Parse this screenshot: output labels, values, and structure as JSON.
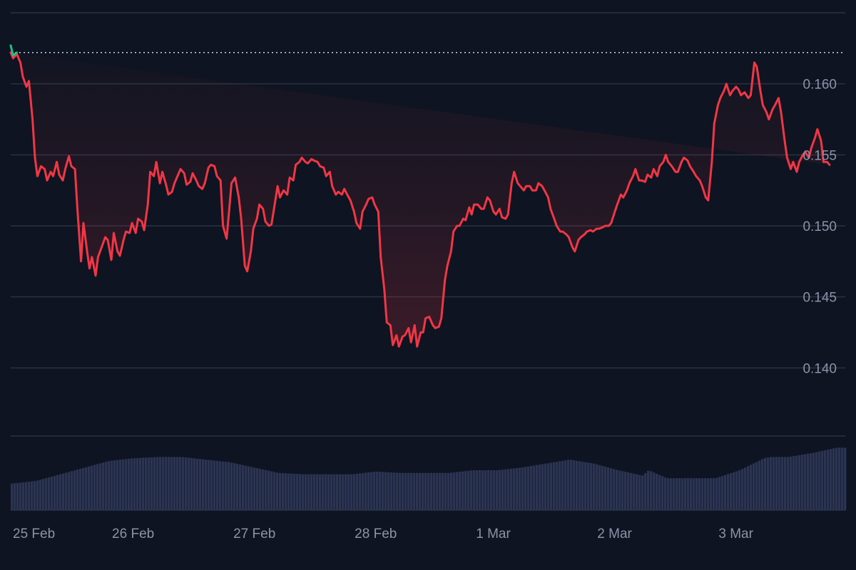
{
  "chart_data": {
    "type": "line",
    "title": "",
    "xlabel": "",
    "ylabel": "",
    "colors": {
      "background": "#0e1421",
      "line_down": "#f23645",
      "line_up": "#22c08a",
      "grid": "#2a3142",
      "volume": "#2b3452",
      "reference_line": "#cfd3dc",
      "tick_text": "#8b93a6"
    },
    "x_ticks": [
      {
        "label": "25 Feb",
        "t": 0.0
      },
      {
        "label": "26 Feb",
        "t": 1.0
      },
      {
        "label": "27 Feb",
        "t": 2.0
      },
      {
        "label": "28 Feb",
        "t": 3.0
      },
      {
        "label": "1 Mar",
        "t": 4.0
      },
      {
        "label": "2 Mar",
        "t": 5.0
      },
      {
        "label": "3 Mar",
        "t": 6.0
      }
    ],
    "xlim": [
      0.0,
      6.88
    ],
    "y_ticks": [
      0.14,
      0.145,
      0.15,
      0.155,
      0.16
    ],
    "y_tick_labels": [
      "0.140",
      "0.145",
      "0.150",
      "0.155",
      "0.160"
    ],
    "ylim": [
      0.1352,
      0.165
    ],
    "reference_value": 0.1622,
    "opening_segment": {
      "t": [
        0.0,
        0.02,
        0.05
      ],
      "v": [
        0.1627,
        0.162,
        0.1622
      ]
    },
    "series": [
      {
        "role": "price",
        "t": [
          0.0,
          0.02,
          0.05,
          0.08,
          0.1,
          0.13,
          0.15,
          0.18,
          0.2,
          0.22,
          0.25,
          0.28,
          0.3,
          0.33,
          0.35,
          0.38,
          0.4,
          0.43,
          0.45,
          0.48,
          0.5,
          0.53,
          0.55,
          0.58,
          0.6,
          0.63,
          0.65,
          0.67,
          0.7,
          0.72,
          0.75,
          0.78,
          0.8,
          0.83,
          0.85,
          0.88,
          0.9,
          0.93,
          0.95,
          0.98,
          1.0,
          1.03,
          1.05,
          1.08,
          1.1,
          1.13,
          1.15,
          1.18,
          1.2,
          1.23,
          1.25,
          1.28,
          1.3,
          1.33,
          1.35,
          1.38,
          1.4,
          1.43,
          1.45,
          1.48,
          1.5,
          1.53,
          1.55,
          1.58,
          1.6,
          1.63,
          1.65,
          1.68,
          1.7,
          1.73,
          1.75,
          1.78,
          1.8,
          1.82,
          1.85,
          1.88,
          1.9,
          1.93,
          1.95,
          1.98,
          2.0,
          2.03,
          2.05,
          2.08,
          2.1,
          2.13,
          2.15,
          2.18,
          2.2,
          2.22,
          2.25,
          2.28,
          2.3,
          2.33,
          2.35,
          2.38,
          2.4,
          2.43,
          2.45,
          2.48,
          2.5,
          2.53,
          2.55,
          2.58,
          2.6,
          2.63,
          2.65,
          2.68,
          2.7,
          2.73,
          2.75,
          2.78,
          2.8,
          2.83,
          2.85,
          2.88,
          2.9,
          2.93,
          2.95,
          2.98,
          3.0,
          3.03,
          3.05,
          3.08,
          3.1,
          3.13,
          3.15,
          3.18,
          3.2,
          3.23,
          3.25,
          3.28,
          3.3,
          3.33,
          3.35,
          3.38,
          3.4,
          3.42,
          3.45,
          3.48,
          3.5,
          3.53,
          3.55,
          3.58,
          3.6,
          3.63,
          3.65,
          3.68,
          3.7,
          3.73,
          3.75,
          3.78,
          3.8,
          3.82,
          3.85,
          3.88,
          3.9,
          3.93,
          3.95,
          3.98,
          4.0,
          4.03,
          4.05,
          4.08,
          4.1,
          4.13,
          4.15,
          4.18,
          4.2,
          4.23,
          4.25,
          4.28,
          4.3,
          4.33,
          4.35,
          4.38,
          4.4,
          4.43,
          4.45,
          4.48,
          4.5,
          4.53,
          4.55,
          4.58,
          4.6,
          4.63,
          4.65,
          4.68,
          4.7,
          4.73,
          4.75,
          4.78,
          4.8,
          4.83,
          4.85,
          4.88,
          4.9,
          4.93,
          4.95,
          4.98,
          5.0,
          5.03,
          5.05,
          5.08,
          5.1,
          5.13,
          5.15,
          5.18,
          5.2,
          5.23,
          5.25,
          5.28,
          5.3,
          5.33,
          5.35,
          5.38,
          5.4,
          5.42,
          5.45,
          5.48,
          5.5,
          5.53,
          5.55,
          5.58,
          5.6,
          5.63,
          5.65,
          5.68,
          5.7,
          5.73,
          5.75,
          5.78,
          5.8,
          5.83,
          5.85,
          5.88,
          5.9,
          5.93,
          5.95,
          5.98,
          6.0,
          6.02,
          6.05,
          6.08,
          6.1,
          6.13,
          6.15,
          6.18,
          6.2,
          6.23,
          6.25,
          6.28,
          6.3,
          6.33,
          6.35,
          6.38,
          6.4,
          6.43,
          6.45,
          6.48,
          6.5,
          6.53,
          6.55,
          6.58,
          6.6,
          6.63,
          6.65,
          6.68,
          6.7,
          6.73,
          6.75,
          6.78,
          6.8,
          6.83,
          6.85,
          6.88
        ],
        "v": [
          0.1622,
          0.1618,
          0.1621,
          0.1615,
          0.1605,
          0.1598,
          0.1602,
          0.1575,
          0.1548,
          0.1535,
          0.1542,
          0.154,
          0.1532,
          0.1538,
          0.1535,
          0.1545,
          0.1536,
          0.1532,
          0.154,
          0.1549,
          0.1542,
          0.154,
          0.1512,
          0.1475,
          0.1502,
          0.1482,
          0.147,
          0.1478,
          0.1465,
          0.1478,
          0.1485,
          0.1492,
          0.149,
          0.1476,
          0.1495,
          0.1482,
          0.1479,
          0.149,
          0.1496,
          0.1495,
          0.1502,
          0.1495,
          0.1505,
          0.1503,
          0.1497,
          0.1515,
          0.1538,
          0.1535,
          0.1545,
          0.153,
          0.1538,
          0.1529,
          0.1522,
          0.1524,
          0.153,
          0.1536,
          0.154,
          0.1537,
          0.1529,
          0.1531,
          0.1537,
          0.1532,
          0.1528,
          0.1526,
          0.153,
          0.1541,
          0.1543,
          0.1542,
          0.1535,
          0.1532,
          0.15,
          0.1491,
          0.151,
          0.153,
          0.1534,
          0.152,
          0.1505,
          0.1472,
          0.1468,
          0.1482,
          0.1498,
          0.1505,
          0.1515,
          0.1512,
          0.1503,
          0.15,
          0.1501,
          0.1517,
          0.1528,
          0.152,
          0.1525,
          0.1522,
          0.1534,
          0.1532,
          0.1543,
          0.1545,
          0.1548,
          0.1545,
          0.1544,
          0.1547,
          0.1546,
          0.1545,
          0.1542,
          0.1541,
          0.1535,
          0.1538,
          0.1528,
          0.1522,
          0.1524,
          0.1522,
          0.1526,
          0.1521,
          0.1518,
          0.151,
          0.1502,
          0.1498,
          0.151,
          0.1515,
          0.1519,
          0.152,
          0.1515,
          0.151,
          0.1478,
          0.1455,
          0.1432,
          0.143,
          0.1416,
          0.1423,
          0.1415,
          0.1422,
          0.1423,
          0.1428,
          0.1418,
          0.143,
          0.1415,
          0.1425,
          0.1425,
          0.1435,
          0.1436,
          0.143,
          0.1428,
          0.1429,
          0.1435,
          0.1462,
          0.1472,
          0.1482,
          0.1496,
          0.15,
          0.15,
          0.1505,
          0.1504,
          0.1513,
          0.1508,
          0.1515,
          0.1515,
          0.1512,
          0.1512,
          0.152,
          0.1518,
          0.151,
          0.1508,
          0.1512,
          0.1506,
          0.1505,
          0.1508,
          0.153,
          0.1538,
          0.153,
          0.1528,
          0.1525,
          0.1528,
          0.1528,
          0.1525,
          0.1525,
          0.153,
          0.1528,
          0.1525,
          0.152,
          0.1512,
          0.1505,
          0.15,
          0.1496,
          0.1496,
          0.1494,
          0.1492,
          0.1485,
          0.1482,
          0.149,
          0.1492,
          0.1494,
          0.1496,
          0.1497,
          0.1496,
          0.1498,
          0.1498,
          0.1499,
          0.15,
          0.15,
          0.1502,
          0.151,
          0.1515,
          0.1522,
          0.152,
          0.1525,
          0.153,
          0.1535,
          0.154,
          0.1532,
          0.1532,
          0.1531,
          0.1536,
          0.1534,
          0.154,
          0.1535,
          0.1542,
          0.1545,
          0.155,
          0.1545,
          0.1542,
          0.1538,
          0.1538,
          0.1545,
          0.1548,
          0.1546,
          0.1542,
          0.1538,
          0.1535,
          0.1532,
          0.1528,
          0.152,
          0.1518,
          0.1545,
          0.1572,
          0.1585,
          0.159,
          0.1595,
          0.16,
          0.1592,
          0.1595,
          0.1598,
          0.1596,
          0.1592,
          0.1594,
          0.159,
          0.1592,
          0.1615,
          0.1612,
          0.1595,
          0.1585,
          0.158,
          0.1575,
          0.1582,
          0.1585,
          0.159,
          0.158,
          0.156,
          0.1548,
          0.154,
          0.1545,
          0.1538,
          0.1545,
          0.155,
          0.1552,
          0.1548,
          0.1555,
          0.1562,
          0.1568,
          0.156,
          0.1545,
          0.1545,
          0.1543
        ]
      }
    ],
    "volume": {
      "t": [
        0.0,
        0.2,
        0.4,
        0.6,
        0.8,
        1.0,
        1.2,
        1.4,
        1.6,
        1.8,
        2.0,
        2.2,
        2.4,
        2.6,
        2.8,
        3.0,
        3.2,
        3.4,
        3.6,
        3.8,
        4.0,
        4.2,
        4.4,
        4.6,
        4.8,
        5.0,
        5.2,
        5.25,
        5.4,
        5.6,
        5.8,
        6.0,
        6.2,
        6.25,
        6.4,
        6.6,
        6.8,
        6.88
      ],
      "v": [
        20,
        22,
        27,
        32,
        37,
        39,
        40,
        40,
        38,
        36,
        32,
        28,
        27,
        27,
        27,
        29,
        28,
        28,
        28,
        30,
        30,
        32,
        35,
        38,
        35,
        30,
        26,
        30,
        24,
        24,
        24,
        30,
        39,
        40,
        40,
        43,
        47,
        47
      ]
    }
  }
}
